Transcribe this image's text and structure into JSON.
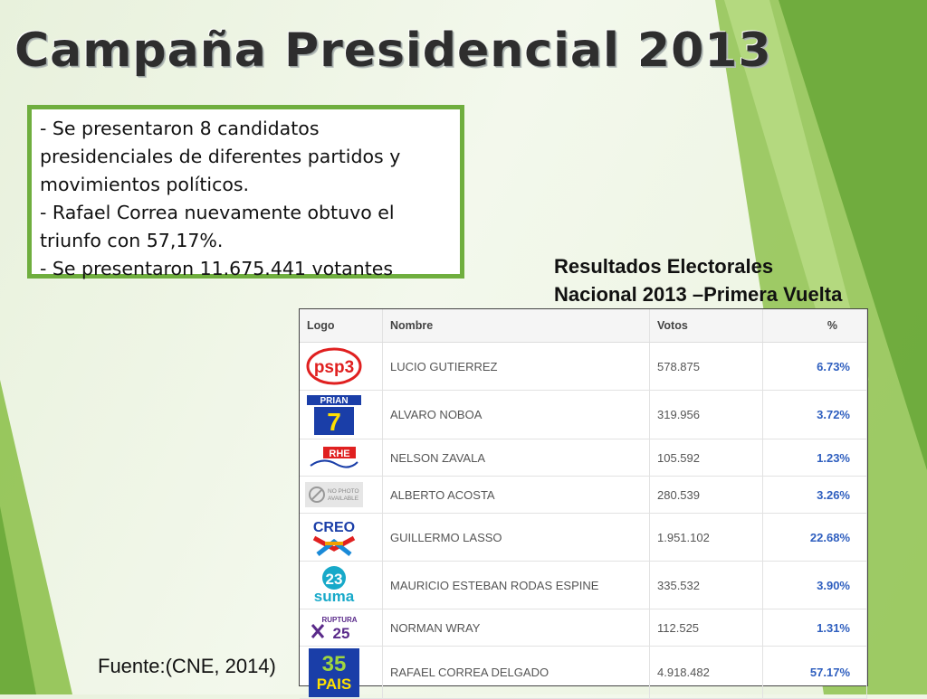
{
  "slide": {
    "title": "Campaña Presidencial 2013",
    "info_lines": [
      "- Se presentaron 8 candidatos",
      "presidenciales  de diferentes partidos y",
      "movimientos políticos.",
      "- Rafael Correa nuevamente obtuvo el",
      "triunfo con 57,17%.",
      "- Se presentaron 11.675.441 votantes"
    ],
    "results_title_line1": "Resultados Electorales",
    "results_title_line2": "Nacional 2013 –Primera Vuelta",
    "source": "Fuente:(CNE, 2014)"
  },
  "table": {
    "headers": {
      "logo": "Logo",
      "name": "Nombre",
      "votes": "Votos",
      "pct": "%"
    },
    "rows": [
      {
        "logo_icon": "psp3-logo",
        "logo_text": "psp3",
        "name": "LUCIO GUTIERREZ",
        "votes": "578.875",
        "pct": "6.73%"
      },
      {
        "logo_icon": "prian-logo",
        "logo_text": "PRIAN 7",
        "name": "ALVARO NOBOA",
        "votes": "319.956",
        "pct": "3.72%"
      },
      {
        "logo_icon": "rhe-logo",
        "logo_text": "RHE",
        "name": "NELSON ZAVALA",
        "votes": "105.592",
        "pct": "1.23%"
      },
      {
        "logo_icon": "no-photo-logo",
        "logo_text": "NO PHOTO AVAILABLE",
        "name": "ALBERTO ACOSTA",
        "votes": "280.539",
        "pct": "3.26%"
      },
      {
        "logo_icon": "creo-logo",
        "logo_text": "CREO",
        "name": "GUILLERMO LASSO",
        "votes": "1.951.102",
        "pct": "22.68%"
      },
      {
        "logo_icon": "suma-logo",
        "logo_text": "23 suma",
        "name": "MAURICIO ESTEBAN RODAS ESPINE",
        "votes": "335.532",
        "pct": "3.90%"
      },
      {
        "logo_icon": "ruptura-logo",
        "logo_text": "RUPTURA 25",
        "name": "NORMAN WRAY",
        "votes": "112.525",
        "pct": "1.31%"
      },
      {
        "logo_icon": "pais-logo",
        "logo_text": "35 PAIS",
        "name": "RAFAEL CORREA DELGADO",
        "votes": "4.918.482",
        "pct": "57.17%"
      }
    ]
  }
}
